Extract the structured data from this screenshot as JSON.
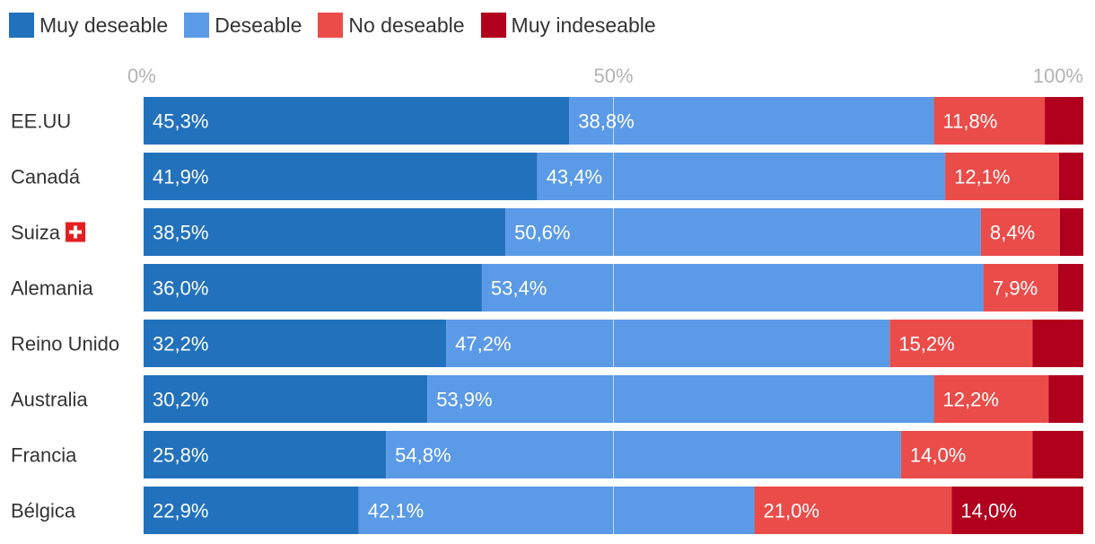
{
  "chart_data": {
    "type": "bar",
    "orientation": "horizontal",
    "stacked": true,
    "title": "",
    "xlabel": "",
    "ylabel": "",
    "xlim": [
      0,
      100
    ],
    "ticks": [
      "0%",
      "50%",
      "100%"
    ],
    "legend_position": "top-left",
    "categories": [
      "EE.UU",
      "Canadá",
      "Suiza",
      "Alemania",
      "Reino Unido",
      "Australia",
      "Francia",
      "Bélgica"
    ],
    "series": [
      {
        "name": "Muy deseable",
        "color": "#2271bc",
        "values": [
          45.3,
          41.9,
          38.5,
          36.0,
          32.2,
          30.2,
          25.8,
          22.9
        ],
        "labels": [
          "45,3%",
          "41,9%",
          "38,5%",
          "36,0%",
          "32,2%",
          "30,2%",
          "25,8%",
          "22,9%"
        ]
      },
      {
        "name": "Deseable",
        "color": "#5b9ae6",
        "values": [
          38.8,
          43.4,
          50.6,
          53.4,
          47.2,
          53.9,
          54.8,
          42.1
        ],
        "labels": [
          "38,8%",
          "43,4%",
          "50,6%",
          "53,4%",
          "47,2%",
          "53,9%",
          "54,8%",
          "42,1%"
        ]
      },
      {
        "name": "No deseable",
        "color": "#ea4c4a",
        "values": [
          11.8,
          12.1,
          8.4,
          7.9,
          15.2,
          12.2,
          14.0,
          21.0
        ],
        "labels": [
          "11,8%",
          "12,1%",
          "8,4%",
          "7,9%",
          "15,2%",
          "12,2%",
          "14,0%",
          "21,0%"
        ]
      },
      {
        "name": "Muy indeseable",
        "color": "#b0001e",
        "values": [
          4.1,
          2.6,
          2.5,
          2.7,
          5.4,
          3.7,
          5.4,
          14.0
        ],
        "labels": [
          "",
          "",
          "",
          "",
          "",
          "",
          "",
          "14,0%"
        ]
      }
    ],
    "flag_category": "Suiza",
    "flag_icon": "swiss-flag-icon",
    "gridline_color": "#ffffff"
  }
}
